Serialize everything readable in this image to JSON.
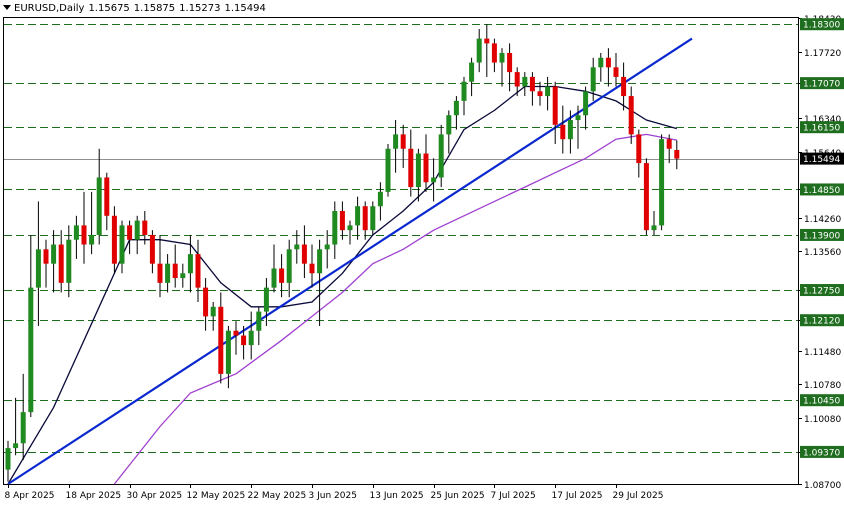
{
  "header": {
    "symbol": "EURUSD,Daily",
    "open": "1.15675",
    "high": "1.15875",
    "low": "1.15273",
    "close": "1.15494"
  },
  "colors": {
    "background": "#ffffff",
    "bull": "#1f8a1f",
    "bear": "#e00000",
    "wick": "#000000",
    "ma_fast": "#0a0a3a",
    "ma_slow": "#a040d0",
    "trendline": "#0a28d0",
    "level_line": "#1f6e1f",
    "level_label_bg": "#1f6e1f",
    "level_label_text": "#ffffff",
    "price_label_bg": "#000000"
  },
  "chart_data": {
    "type": "candlestick",
    "symbol": "EURUSD",
    "timeframe": "Daily",
    "ylim": [
      1.087,
      1.1843
    ],
    "y_ticks": [
      "1.18430",
      "1.17720",
      "1.17070",
      "1.16340",
      "1.15640",
      "1.14850",
      "1.14260",
      "1.13560",
      "1.12750",
      "1.12120",
      "1.11480",
      "1.10780",
      "1.10080",
      "1.09370",
      "1.08700"
    ],
    "x_ticks": [
      {
        "label": "8 Apr 2025",
        "index": 0
      },
      {
        "label": "18 Apr 2025",
        "index": 8
      },
      {
        "label": "30 Apr 2025",
        "index": 16
      },
      {
        "label": "12 May 2025",
        "index": 24
      },
      {
        "label": "22 May 2025",
        "index": 32
      },
      {
        "label": "3 Jun 2025",
        "index": 40
      },
      {
        "label": "13 Jun 2025",
        "index": 48
      },
      {
        "label": "25 Jun 2025",
        "index": 56
      },
      {
        "label": "7 Jul 2025",
        "index": 64
      },
      {
        "label": "17 Jul 2025",
        "index": 72
      },
      {
        "label": "29 Jul 2025",
        "index": 80
      }
    ],
    "levels": [
      {
        "value": 1.183,
        "label": "1.18300"
      },
      {
        "value": 1.1707,
        "label": "1.17070"
      },
      {
        "value": 1.1615,
        "label": "1.16150"
      },
      {
        "value": 1.1485,
        "label": "1.14850"
      },
      {
        "value": 1.139,
        "label": "1.13900"
      },
      {
        "value": 1.1275,
        "label": "1.12750"
      },
      {
        "value": 1.1212,
        "label": "1.12120"
      },
      {
        "value": 1.1045,
        "label": "1.10450"
      },
      {
        "value": 1.0937,
        "label": "1.09370"
      }
    ],
    "current_price": {
      "value": 1.15494,
      "label": "1.15494"
    },
    "candles": [
      {
        "o": 1.09,
        "h": 1.096,
        "l": 1.0875,
        "c": 1.0945
      },
      {
        "o": 1.0945,
        "h": 1.105,
        "l": 1.093,
        "c": 1.0955
      },
      {
        "o": 1.0955,
        "h": 1.11,
        "l": 1.092,
        "c": 1.102
      },
      {
        "o": 1.102,
        "h": 1.139,
        "l": 1.101,
        "c": 1.128
      },
      {
        "o": 1.128,
        "h": 1.146,
        "l": 1.12,
        "c": 1.136
      },
      {
        "o": 1.136,
        "h": 1.138,
        "l": 1.128,
        "c": 1.133
      },
      {
        "o": 1.133,
        "h": 1.14,
        "l": 1.127,
        "c": 1.137
      },
      {
        "o": 1.137,
        "h": 1.14,
        "l": 1.127,
        "c": 1.129
      },
      {
        "o": 1.129,
        "h": 1.141,
        "l": 1.126,
        "c": 1.138
      },
      {
        "o": 1.138,
        "h": 1.143,
        "l": 1.134,
        "c": 1.141
      },
      {
        "o": 1.141,
        "h": 1.148,
        "l": 1.133,
        "c": 1.137
      },
      {
        "o": 1.137,
        "h": 1.148,
        "l": 1.135,
        "c": 1.139
      },
      {
        "o": 1.139,
        "h": 1.157,
        "l": 1.137,
        "c": 1.151
      },
      {
        "o": 1.151,
        "h": 1.152,
        "l": 1.14,
        "c": 1.143
      },
      {
        "o": 1.143,
        "h": 1.145,
        "l": 1.131,
        "c": 1.133
      },
      {
        "o": 1.133,
        "h": 1.142,
        "l": 1.131,
        "c": 1.141
      },
      {
        "o": 1.141,
        "h": 1.142,
        "l": 1.135,
        "c": 1.138
      },
      {
        "o": 1.138,
        "h": 1.143,
        "l": 1.135,
        "c": 1.142
      },
      {
        "o": 1.142,
        "h": 1.144,
        "l": 1.137,
        "c": 1.139
      },
      {
        "o": 1.139,
        "h": 1.14,
        "l": 1.131,
        "c": 1.133
      },
      {
        "o": 1.133,
        "h": 1.139,
        "l": 1.126,
        "c": 1.129
      },
      {
        "o": 1.129,
        "h": 1.135,
        "l": 1.127,
        "c": 1.133
      },
      {
        "o": 1.133,
        "h": 1.137,
        "l": 1.128,
        "c": 1.13
      },
      {
        "o": 1.13,
        "h": 1.133,
        "l": 1.128,
        "c": 1.131
      },
      {
        "o": 1.131,
        "h": 1.139,
        "l": 1.127,
        "c": 1.135
      },
      {
        "o": 1.135,
        "h": 1.138,
        "l": 1.125,
        "c": 1.128
      },
      {
        "o": 1.128,
        "h": 1.13,
        "l": 1.119,
        "c": 1.122
      },
      {
        "o": 1.122,
        "h": 1.125,
        "l": 1.119,
        "c": 1.124
      },
      {
        "o": 1.124,
        "h": 1.127,
        "l": 1.108,
        "c": 1.11
      },
      {
        "o": 1.11,
        "h": 1.12,
        "l": 1.107,
        "c": 1.119
      },
      {
        "o": 1.119,
        "h": 1.121,
        "l": 1.114,
        "c": 1.118
      },
      {
        "o": 1.118,
        "h": 1.12,
        "l": 1.113,
        "c": 1.116
      },
      {
        "o": 1.116,
        "h": 1.123,
        "l": 1.113,
        "c": 1.119
      },
      {
        "o": 1.119,
        "h": 1.124,
        "l": 1.116,
        "c": 1.123
      },
      {
        "o": 1.123,
        "h": 1.13,
        "l": 1.12,
        "c": 1.128
      },
      {
        "o": 1.128,
        "h": 1.137,
        "l": 1.127,
        "c": 1.132
      },
      {
        "o": 1.132,
        "h": 1.135,
        "l": 1.126,
        "c": 1.129
      },
      {
        "o": 1.129,
        "h": 1.138,
        "l": 1.126,
        "c": 1.136
      },
      {
        "o": 1.136,
        "h": 1.14,
        "l": 1.133,
        "c": 1.137
      },
      {
        "o": 1.137,
        "h": 1.141,
        "l": 1.13,
        "c": 1.133
      },
      {
        "o": 1.133,
        "h": 1.137,
        "l": 1.128,
        "c": 1.131
      },
      {
        "o": 1.131,
        "h": 1.138,
        "l": 1.12,
        "c": 1.136
      },
      {
        "o": 1.136,
        "h": 1.14,
        "l": 1.132,
        "c": 1.137
      },
      {
        "o": 1.137,
        "h": 1.146,
        "l": 1.134,
        "c": 1.144
      },
      {
        "o": 1.144,
        "h": 1.146,
        "l": 1.138,
        "c": 1.14
      },
      {
        "o": 1.14,
        "h": 1.142,
        "l": 1.137,
        "c": 1.141
      },
      {
        "o": 1.141,
        "h": 1.147,
        "l": 1.138,
        "c": 1.145
      },
      {
        "o": 1.145,
        "h": 1.146,
        "l": 1.138,
        "c": 1.14
      },
      {
        "o": 1.14,
        "h": 1.146,
        "l": 1.139,
        "c": 1.145
      },
      {
        "o": 1.145,
        "h": 1.15,
        "l": 1.142,
        "c": 1.148
      },
      {
        "o": 1.148,
        "h": 1.158,
        "l": 1.147,
        "c": 1.157
      },
      {
        "o": 1.157,
        "h": 1.163,
        "l": 1.152,
        "c": 1.16
      },
      {
        "o": 1.16,
        "h": 1.162,
        "l": 1.153,
        "c": 1.157
      },
      {
        "o": 1.157,
        "h": 1.161,
        "l": 1.147,
        "c": 1.149
      },
      {
        "o": 1.149,
        "h": 1.157,
        "l": 1.146,
        "c": 1.156
      },
      {
        "o": 1.156,
        "h": 1.16,
        "l": 1.148,
        "c": 1.15
      },
      {
        "o": 1.15,
        "h": 1.155,
        "l": 1.146,
        "c": 1.151
      },
      {
        "o": 1.151,
        "h": 1.162,
        "l": 1.149,
        "c": 1.16
      },
      {
        "o": 1.16,
        "h": 1.165,
        "l": 1.156,
        "c": 1.164
      },
      {
        "o": 1.164,
        "h": 1.168,
        "l": 1.161,
        "c": 1.167
      },
      {
        "o": 1.167,
        "h": 1.172,
        "l": 1.164,
        "c": 1.171
      },
      {
        "o": 1.171,
        "h": 1.176,
        "l": 1.168,
        "c": 1.175
      },
      {
        "o": 1.175,
        "h": 1.182,
        "l": 1.173,
        "c": 1.18
      },
      {
        "o": 1.18,
        "h": 1.183,
        "l": 1.172,
        "c": 1.179
      },
      {
        "o": 1.179,
        "h": 1.18,
        "l": 1.173,
        "c": 1.175
      },
      {
        "o": 1.175,
        "h": 1.178,
        "l": 1.17,
        "c": 1.177
      },
      {
        "o": 1.177,
        "h": 1.179,
        "l": 1.169,
        "c": 1.173
      },
      {
        "o": 1.173,
        "h": 1.174,
        "l": 1.168,
        "c": 1.17
      },
      {
        "o": 1.17,
        "h": 1.173,
        "l": 1.168,
        "c": 1.172
      },
      {
        "o": 1.172,
        "h": 1.173,
        "l": 1.166,
        "c": 1.169
      },
      {
        "o": 1.169,
        "h": 1.171,
        "l": 1.166,
        "c": 1.168
      },
      {
        "o": 1.168,
        "h": 1.172,
        "l": 1.165,
        "c": 1.17
      },
      {
        "o": 1.17,
        "h": 1.171,
        "l": 1.158,
        "c": 1.162
      },
      {
        "o": 1.162,
        "h": 1.166,
        "l": 1.156,
        "c": 1.159
      },
      {
        "o": 1.159,
        "h": 1.165,
        "l": 1.156,
        "c": 1.163
      },
      {
        "o": 1.163,
        "h": 1.166,
        "l": 1.157,
        "c": 1.164
      },
      {
        "o": 1.164,
        "h": 1.17,
        "l": 1.161,
        "c": 1.169
      },
      {
        "o": 1.169,
        "h": 1.176,
        "l": 1.167,
        "c": 1.174
      },
      {
        "o": 1.174,
        "h": 1.177,
        "l": 1.171,
        "c": 1.176
      },
      {
        "o": 1.176,
        "h": 1.178,
        "l": 1.17,
        "c": 1.174
      },
      {
        "o": 1.174,
        "h": 1.177,
        "l": 1.17,
        "c": 1.172
      },
      {
        "o": 1.172,
        "h": 1.175,
        "l": 1.165,
        "c": 1.168
      },
      {
        "o": 1.168,
        "h": 1.17,
        "l": 1.158,
        "c": 1.16
      },
      {
        "o": 1.16,
        "h": 1.161,
        "l": 1.151,
        "c": 1.154
      },
      {
        "o": 1.154,
        "h": 1.155,
        "l": 1.139,
        "c": 1.14
      },
      {
        "o": 1.14,
        "h": 1.144,
        "l": 1.139,
        "c": 1.141
      },
      {
        "o": 1.141,
        "h": 1.16,
        "l": 1.14,
        "c": 1.159
      },
      {
        "o": 1.159,
        "h": 1.16,
        "l": 1.154,
        "c": 1.157
      },
      {
        "o": 1.15675,
        "h": 1.15875,
        "l": 1.15273,
        "c": 1.15494
      }
    ],
    "ma_fast": [
      [
        0,
        1.087
      ],
      [
        6,
        1.103
      ],
      [
        12,
        1.124
      ],
      [
        16,
        1.138
      ],
      [
        20,
        1.138
      ],
      [
        24,
        1.137
      ],
      [
        28,
        1.129
      ],
      [
        32,
        1.124
      ],
      [
        36,
        1.124
      ],
      [
        40,
        1.125
      ],
      [
        44,
        1.131
      ],
      [
        48,
        1.139
      ],
      [
        52,
        1.144
      ],
      [
        56,
        1.15
      ],
      [
        60,
        1.161
      ],
      [
        64,
        1.165
      ],
      [
        68,
        1.17
      ],
      [
        72,
        1.17
      ],
      [
        76,
        1.169
      ],
      [
        80,
        1.167
      ],
      [
        84,
        1.163
      ],
      [
        88,
        1.1612
      ]
    ],
    "ma_slow": [
      [
        14,
        1.087
      ],
      [
        20,
        1.099
      ],
      [
        24,
        1.106
      ],
      [
        30,
        1.11
      ],
      [
        36,
        1.117
      ],
      [
        40,
        1.122
      ],
      [
        44,
        1.127
      ],
      [
        48,
        1.133
      ],
      [
        52,
        1.136
      ],
      [
        56,
        1.14
      ],
      [
        60,
        1.143
      ],
      [
        64,
        1.146
      ],
      [
        68,
        1.149
      ],
      [
        72,
        1.152
      ],
      [
        76,
        1.155
      ],
      [
        80,
        1.159
      ],
      [
        84,
        1.16
      ],
      [
        88,
        1.1588
      ]
    ],
    "trendline": {
      "from": [
        0,
        1.087
      ],
      "to": [
        90,
        1.18
      ]
    }
  }
}
